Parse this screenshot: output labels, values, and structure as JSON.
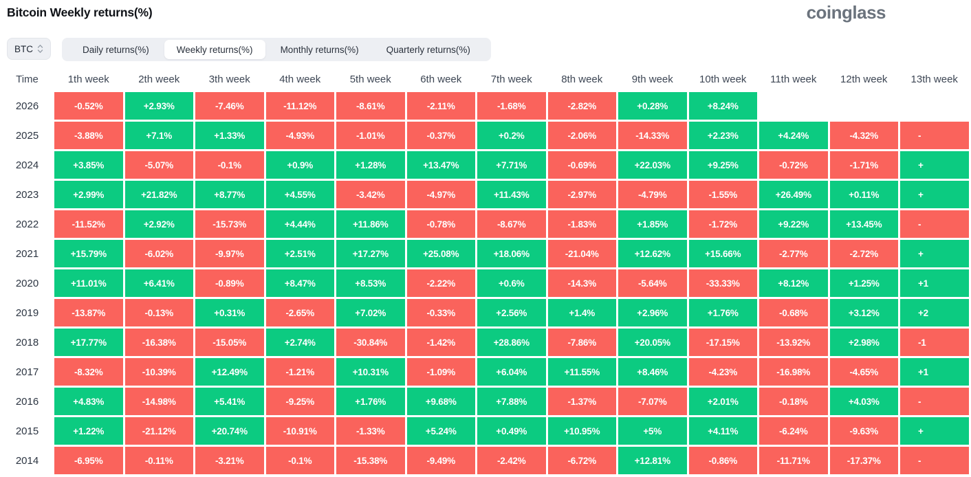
{
  "header": {
    "title": "Bitcoin Weekly returns(%)",
    "logo": "coinglass"
  },
  "controls": {
    "symbol": "BTC",
    "sort_icon": "updown-chevron",
    "tabs": [
      {
        "label": "Daily returns(%)",
        "active": false
      },
      {
        "label": "Weekly returns(%)",
        "active": true
      },
      {
        "label": "Monthly returns(%)",
        "active": false
      },
      {
        "label": "Quarterly returns(%)",
        "active": false
      }
    ]
  },
  "colors": {
    "positive": "#0ccb81",
    "negative": "#fa635c",
    "tab_bg": "#edeff3"
  },
  "chart_data": {
    "type": "heatmap",
    "title": "Bitcoin Weekly returns(%)",
    "time_header": "Time",
    "columns": [
      "1th week",
      "2th week",
      "3th week",
      "4th week",
      "5th week",
      "6th week",
      "7th week",
      "8th week",
      "9th week",
      "10th week",
      "11th week",
      "12th week",
      "13th week"
    ],
    "note": "13th week column is clipped by the viewport edge; only leading sign/digits visible",
    "rows": [
      {
        "year": "2026",
        "values": [
          "-0.52%",
          "+2.93%",
          "-7.46%",
          "-11.12%",
          "-8.61%",
          "-2.11%",
          "-1.68%",
          "-2.82%",
          "+0.28%",
          "+8.24%",
          "",
          "",
          ""
        ]
      },
      {
        "year": "2025",
        "values": [
          "-3.88%",
          "+7.1%",
          "+1.33%",
          "-4.93%",
          "-1.01%",
          "-0.37%",
          "+0.2%",
          "-2.06%",
          "-14.33%",
          "+2.23%",
          "+4.24%",
          "-4.32%",
          "-"
        ]
      },
      {
        "year": "2024",
        "values": [
          "+3.85%",
          "-5.07%",
          "-0.1%",
          "+0.9%",
          "+1.28%",
          "+13.47%",
          "+7.71%",
          "-0.69%",
          "+22.03%",
          "+9.25%",
          "-0.72%",
          "-1.71%",
          "+"
        ]
      },
      {
        "year": "2023",
        "values": [
          "+2.99%",
          "+21.82%",
          "+8.77%",
          "+4.55%",
          "-3.42%",
          "-4.97%",
          "+11.43%",
          "-2.97%",
          "-4.79%",
          "-1.55%",
          "+26.49%",
          "+0.11%",
          "+"
        ]
      },
      {
        "year": "2022",
        "values": [
          "-11.52%",
          "+2.92%",
          "-15.73%",
          "+4.44%",
          "+11.86%",
          "-0.78%",
          "-8.67%",
          "-1.83%",
          "+1.85%",
          "-1.72%",
          "+9.22%",
          "+13.45%",
          "-"
        ]
      },
      {
        "year": "2021",
        "values": [
          "+15.79%",
          "-6.02%",
          "-9.97%",
          "+2.51%",
          "+17.27%",
          "+25.08%",
          "+18.06%",
          "-21.04%",
          "+12.62%",
          "+15.66%",
          "-2.77%",
          "-2.72%",
          "+"
        ]
      },
      {
        "year": "2020",
        "values": [
          "+11.01%",
          "+6.41%",
          "-0.89%",
          "+8.47%",
          "+8.53%",
          "-2.22%",
          "+0.6%",
          "-14.3%",
          "-5.64%",
          "-33.33%",
          "+8.12%",
          "+1.25%",
          "+1"
        ]
      },
      {
        "year": "2019",
        "values": [
          "-13.87%",
          "-0.13%",
          "+0.31%",
          "-2.65%",
          "+7.02%",
          "-0.33%",
          "+2.56%",
          "+1.4%",
          "+2.96%",
          "+1.76%",
          "-0.68%",
          "+3.12%",
          "+2"
        ]
      },
      {
        "year": "2018",
        "values": [
          "+17.77%",
          "-16.38%",
          "-15.05%",
          "+2.74%",
          "-30.84%",
          "-1.42%",
          "+28.86%",
          "-7.86%",
          "+20.05%",
          "-17.15%",
          "-13.92%",
          "+2.98%",
          "-1"
        ]
      },
      {
        "year": "2017",
        "values": [
          "-8.32%",
          "-10.39%",
          "+12.49%",
          "-1.21%",
          "+10.31%",
          "-1.09%",
          "+6.04%",
          "+11.55%",
          "+8.46%",
          "-4.23%",
          "-16.98%",
          "-4.65%",
          "+1"
        ]
      },
      {
        "year": "2016",
        "values": [
          "+4.83%",
          "-14.98%",
          "+5.41%",
          "-9.25%",
          "+1.76%",
          "+9.68%",
          "+7.88%",
          "-1.37%",
          "-7.07%",
          "+2.01%",
          "-0.18%",
          "+4.03%",
          "-"
        ]
      },
      {
        "year": "2015",
        "values": [
          "+1.22%",
          "-21.12%",
          "+20.74%",
          "-10.91%",
          "-1.33%",
          "+5.24%",
          "+0.49%",
          "+10.95%",
          "+5%",
          "+4.11%",
          "-6.24%",
          "-9.63%",
          "+"
        ]
      },
      {
        "year": "2014",
        "values": [
          "-6.95%",
          "-0.11%",
          "-3.21%",
          "-0.1%",
          "-15.38%",
          "-9.49%",
          "-2.42%",
          "-6.72%",
          "+12.81%",
          "-0.86%",
          "-11.71%",
          "-17.37%",
          "-"
        ]
      }
    ]
  }
}
